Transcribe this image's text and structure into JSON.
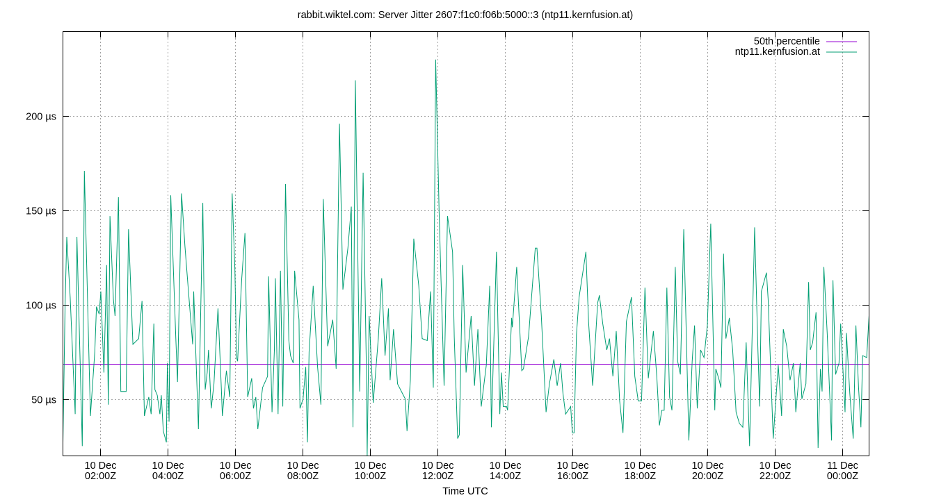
{
  "chart_data": {
    "type": "line",
    "title": "rabbit.wiktel.com: Server Jitter 2607:f1c0:f06b:5000::3 (ntp11.kernfusion.at)",
    "xlabel": "Time UTC",
    "ylabel": "",
    "x_range_hours": [
      0.896,
      24.78
    ],
    "ylim": [
      20,
      245
    ],
    "grid": true,
    "legend_position": "top-right",
    "y_ticks": [
      {
        "value": 50,
        "label": "50 µs"
      },
      {
        "value": 100,
        "label": "100 µs"
      },
      {
        "value": 150,
        "label": "150 µs"
      },
      {
        "value": 200,
        "label": "200 µs"
      }
    ],
    "x_ticks": [
      {
        "hour": 2,
        "line1": "10 Dec",
        "line2": "02:00Z"
      },
      {
        "hour": 4,
        "line1": "10 Dec",
        "line2": "04:00Z"
      },
      {
        "hour": 6,
        "line1": "10 Dec",
        "line2": "06:00Z"
      },
      {
        "hour": 8,
        "line1": "10 Dec",
        "line2": "08:00Z"
      },
      {
        "hour": 10,
        "line1": "10 Dec",
        "line2": "10:00Z"
      },
      {
        "hour": 12,
        "line1": "10 Dec",
        "line2": "12:00Z"
      },
      {
        "hour": 14,
        "line1": "10 Dec",
        "line2": "14:00Z"
      },
      {
        "hour": 16,
        "line1": "10 Dec",
        "line2": "16:00Z"
      },
      {
        "hour": 18,
        "line1": "10 Dec",
        "line2": "18:00Z"
      },
      {
        "hour": 20,
        "line1": "10 Dec",
        "line2": "20:00Z"
      },
      {
        "hour": 22,
        "line1": "10 Dec",
        "line2": "22:00Z"
      },
      {
        "hour": 24,
        "line1": "11 Dec",
        "line2": "00:00Z"
      }
    ],
    "series": [
      {
        "name": "50th percentile",
        "color": "#9400d3",
        "constant": 68.5
      },
      {
        "name": "ntp11.kernfusion.at",
        "color": "#009e73",
        "points": [
          [
            0.9,
            20
          ],
          [
            0.97,
            100
          ],
          [
            1.02,
            136
          ],
          [
            1.12,
            104
          ],
          [
            1.27,
            42
          ],
          [
            1.32,
            136
          ],
          [
            1.48,
            25
          ],
          [
            1.54,
            171
          ],
          [
            1.72,
            41
          ],
          [
            1.85,
            75
          ],
          [
            1.9,
            99
          ],
          [
            1.98,
            95
          ],
          [
            2.03,
            107
          ],
          [
            2.12,
            64
          ],
          [
            2.2,
            121
          ],
          [
            2.25,
            47
          ],
          [
            2.3,
            147
          ],
          [
            2.4,
            103
          ],
          [
            2.45,
            94
          ],
          [
            2.55,
            157
          ],
          [
            2.6,
            85
          ],
          [
            2.62,
            54
          ],
          [
            2.78,
            54
          ],
          [
            2.85,
            140
          ],
          [
            2.98,
            79
          ],
          [
            3.15,
            82
          ],
          [
            3.25,
            102
          ],
          [
            3.32,
            41
          ],
          [
            3.45,
            51
          ],
          [
            3.52,
            42
          ],
          [
            3.6,
            90
          ],
          [
            3.63,
            55
          ],
          [
            3.7,
            52
          ],
          [
            3.78,
            42
          ],
          [
            3.82,
            52
          ],
          [
            3.88,
            33
          ],
          [
            3.97,
            27
          ],
          [
            4.0,
            69
          ],
          [
            4.05,
            38
          ],
          [
            4.1,
            158
          ],
          [
            4.25,
            82
          ],
          [
            4.3,
            59
          ],
          [
            4.42,
            159
          ],
          [
            4.52,
            131
          ],
          [
            4.6,
            113
          ],
          [
            4.75,
            79
          ],
          [
            4.78,
            107
          ],
          [
            4.92,
            34
          ],
          [
            5.05,
            154
          ],
          [
            5.12,
            55
          ],
          [
            5.18,
            64
          ],
          [
            5.22,
            76
          ],
          [
            5.3,
            45
          ],
          [
            5.38,
            58
          ],
          [
            5.5,
            98
          ],
          [
            5.6,
            55
          ],
          [
            5.63,
            41
          ],
          [
            5.75,
            65
          ],
          [
            5.85,
            51
          ],
          [
            5.92,
            159
          ],
          [
            6.0,
            119
          ],
          [
            6.05,
            72
          ],
          [
            6.08,
            70
          ],
          [
            6.2,
            113
          ],
          [
            6.3,
            138
          ],
          [
            6.38,
            51
          ],
          [
            6.5,
            61
          ],
          [
            6.55,
            45
          ],
          [
            6.62,
            51
          ],
          [
            6.68,
            34
          ],
          [
            6.82,
            56
          ],
          [
            6.97,
            62
          ],
          [
            7.0,
            115
          ],
          [
            7.1,
            43
          ],
          [
            7.17,
            76
          ],
          [
            7.2,
            114
          ],
          [
            7.28,
            42
          ],
          [
            7.35,
            118
          ],
          [
            7.42,
            46
          ],
          [
            7.5,
            164
          ],
          [
            7.6,
            81
          ],
          [
            7.65,
            73
          ],
          [
            7.73,
            69
          ],
          [
            7.77,
            118
          ],
          [
            7.9,
            92
          ],
          [
            7.93,
            45
          ],
          [
            8.02,
            50
          ],
          [
            8.1,
            67
          ],
          [
            8.15,
            27
          ],
          [
            8.2,
            75
          ],
          [
            8.32,
            110
          ],
          [
            8.45,
            67
          ],
          [
            8.55,
            47
          ],
          [
            8.62,
            156
          ],
          [
            8.75,
            78
          ],
          [
            8.9,
            92
          ],
          [
            9.0,
            66
          ],
          [
            9.1,
            196
          ],
          [
            9.2,
            108
          ],
          [
            9.35,
            130
          ],
          [
            9.45,
            152
          ],
          [
            9.5,
            35
          ],
          [
            9.57,
            219
          ],
          [
            9.7,
            54
          ],
          [
            9.8,
            170
          ],
          [
            9.9,
            63
          ],
          [
            9.92,
            20
          ],
          [
            9.98,
            94
          ],
          [
            10.1,
            48
          ],
          [
            10.25,
            82
          ],
          [
            10.35,
            114
          ],
          [
            10.45,
            73
          ],
          [
            10.55,
            98
          ],
          [
            10.6,
            60
          ],
          [
            10.7,
            87
          ],
          [
            10.82,
            58
          ],
          [
            11.05,
            50
          ],
          [
            11.1,
            33
          ],
          [
            11.2,
            60
          ],
          [
            11.3,
            135
          ],
          [
            11.45,
            110
          ],
          [
            11.55,
            82
          ],
          [
            11.7,
            81
          ],
          [
            11.8,
            107
          ],
          [
            11.88,
            56
          ],
          [
            11.95,
            230
          ],
          [
            12.05,
            150
          ],
          [
            12.1,
            118
          ],
          [
            12.2,
            57
          ],
          [
            12.3,
            147
          ],
          [
            12.45,
            128
          ],
          [
            12.5,
            83
          ],
          [
            12.6,
            29
          ],
          [
            12.65,
            31
          ],
          [
            12.75,
            121
          ],
          [
            12.85,
            64
          ],
          [
            13.0,
            94
          ],
          [
            13.1,
            57
          ],
          [
            13.2,
            87
          ],
          [
            13.3,
            46
          ],
          [
            13.45,
            68
          ],
          [
            13.55,
            110
          ],
          [
            13.6,
            35
          ],
          [
            13.75,
            128
          ],
          [
            13.85,
            42
          ],
          [
            13.9,
            64
          ],
          [
            13.95,
            46
          ],
          [
            14.05,
            46
          ],
          [
            14.08,
            44
          ],
          [
            14.2,
            93
          ],
          [
            14.22,
            88
          ],
          [
            14.35,
            120
          ],
          [
            14.5,
            65
          ],
          [
            14.55,
            66
          ],
          [
            14.7,
            83
          ],
          [
            14.9,
            130
          ],
          [
            14.95,
            130
          ],
          [
            15.08,
            94
          ],
          [
            15.22,
            43
          ],
          [
            15.32,
            58
          ],
          [
            15.45,
            71
          ],
          [
            15.55,
            57
          ],
          [
            15.65,
            69
          ],
          [
            15.72,
            53
          ],
          [
            15.8,
            42
          ],
          [
            15.95,
            46
          ],
          [
            16.0,
            32
          ],
          [
            16.05,
            32
          ],
          [
            16.12,
            84
          ],
          [
            16.2,
            104
          ],
          [
            16.4,
            128
          ],
          [
            16.48,
            91
          ],
          [
            16.6,
            57
          ],
          [
            16.75,
            101
          ],
          [
            16.8,
            105
          ],
          [
            16.9,
            90
          ],
          [
            17.02,
            76
          ],
          [
            17.1,
            82
          ],
          [
            17.2,
            62
          ],
          [
            17.3,
            86
          ],
          [
            17.4,
            49
          ],
          [
            17.5,
            32
          ],
          [
            17.6,
            91
          ],
          [
            17.75,
            104
          ],
          [
            17.85,
            62
          ],
          [
            17.95,
            49
          ],
          [
            18.05,
            49
          ],
          [
            18.15,
            109
          ],
          [
            18.25,
            61
          ],
          [
            18.4,
            86
          ],
          [
            18.5,
            62
          ],
          [
            18.58,
            36
          ],
          [
            18.65,
            44
          ],
          [
            18.72,
            44
          ],
          [
            18.8,
            109
          ],
          [
            18.88,
            51
          ],
          [
            18.95,
            44
          ],
          [
            19.05,
            120
          ],
          [
            19.12,
            70
          ],
          [
            19.2,
            63
          ],
          [
            19.3,
            140
          ],
          [
            19.45,
            28
          ],
          [
            19.55,
            70
          ],
          [
            19.62,
            89
          ],
          [
            19.7,
            45
          ],
          [
            19.8,
            76
          ],
          [
            19.9,
            72
          ],
          [
            20.0,
            89
          ],
          [
            20.1,
            143
          ],
          [
            20.22,
            44
          ],
          [
            20.25,
            66
          ],
          [
            20.35,
            60
          ],
          [
            20.4,
            56
          ],
          [
            20.48,
            127
          ],
          [
            20.55,
            82
          ],
          [
            20.65,
            93
          ],
          [
            20.75,
            76
          ],
          [
            20.85,
            43
          ],
          [
            20.95,
            37
          ],
          [
            21.05,
            35
          ],
          [
            21.15,
            80
          ],
          [
            21.25,
            25
          ],
          [
            21.4,
            141
          ],
          [
            21.5,
            75
          ],
          [
            21.55,
            46
          ],
          [
            21.6,
            107
          ],
          [
            21.75,
            117
          ],
          [
            21.8,
            103
          ],
          [
            21.95,
            29
          ],
          [
            22.1,
            68
          ],
          [
            22.2,
            41
          ],
          [
            22.25,
            87
          ],
          [
            22.35,
            78
          ],
          [
            22.45,
            60
          ],
          [
            22.55,
            69
          ],
          [
            22.62,
            43
          ],
          [
            22.75,
            69
          ],
          [
            22.8,
            50
          ],
          [
            22.92,
            58
          ],
          [
            23.0,
            112
          ],
          [
            23.05,
            76
          ],
          [
            23.12,
            80
          ],
          [
            23.22,
            96
          ],
          [
            23.28,
            24
          ],
          [
            23.35,
            66
          ],
          [
            23.4,
            54
          ],
          [
            23.45,
            120
          ],
          [
            23.55,
            85
          ],
          [
            23.68,
            28
          ],
          [
            23.72,
            113
          ],
          [
            23.8,
            63
          ],
          [
            23.9,
            69
          ],
          [
            23.95,
            90
          ],
          [
            24.0,
            72
          ],
          [
            24.08,
            43
          ],
          [
            24.12,
            85
          ],
          [
            24.22,
            53
          ],
          [
            24.32,
            29
          ],
          [
            24.4,
            89
          ],
          [
            24.48,
            56
          ],
          [
            24.55,
            35
          ],
          [
            24.6,
            73
          ],
          [
            24.72,
            72
          ],
          [
            24.78,
            91
          ],
          [
            24.85,
            113
          ],
          [
            24.9,
            88
          ]
        ]
      }
    ]
  }
}
